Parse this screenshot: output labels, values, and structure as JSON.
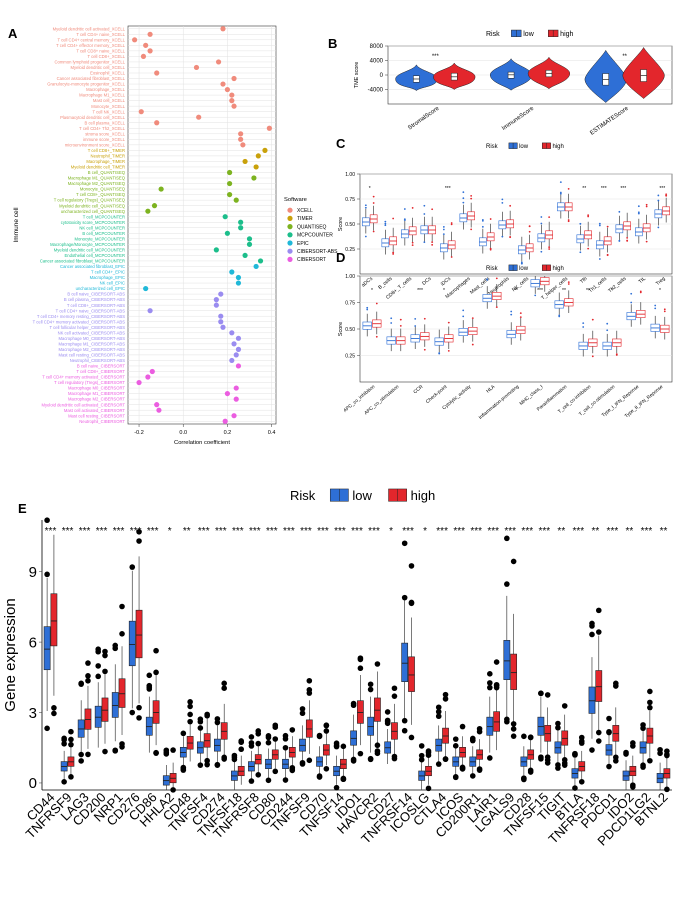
{
  "panel_labels": {
    "A": "A",
    "B": "B",
    "C": "C",
    "D": "D",
    "E": "E"
  },
  "colors": {
    "low": "#2E6FD6",
    "high": "#E3262C",
    "XCELL": "#F08B7C",
    "TIMER": "#C9A10A",
    "QUANTISEQ": "#7DB320",
    "MCPCOUNTER": "#1CBE8B",
    "EPIC": "#20B8D8",
    "CIBERSORT-ABS": "#9A8CF0",
    "CIBERSORT": "#EB5DE0"
  },
  "chart_data": [
    {
      "id": "A",
      "type": "scatter",
      "title": "",
      "xlabel": "Correlation coefficient",
      "ylabel": "Immune cell",
      "xlim": [
        -0.25,
        0.42
      ],
      "xticks": [
        -0.2,
        0.0,
        0.2,
        0.4
      ],
      "xtick_labels": [
        "-0.2",
        "0.0",
        "0.2",
        "0.4"
      ],
      "legend_title": "Software",
      "legend": [
        "XCELL",
        "TIMER",
        "QUANTISEQ",
        "MCPCOUNTER",
        "EPIC",
        "CIBERSORT-ABS",
        "CIBERSORT"
      ],
      "points": [
        {
          "label": "Myeloid dendritic cell activated_XCELL",
          "software": "XCELL",
          "value": 0.18
        },
        {
          "label": "T cell CD4+ naive_XCELL",
          "software": "XCELL",
          "value": -0.15
        },
        {
          "label": "T cell CD4+ central memory_XCELL",
          "software": "XCELL",
          "value": -0.22
        },
        {
          "label": "T cell CD4+ effector memory_XCELL",
          "software": "XCELL",
          "value": -0.17
        },
        {
          "label": "T cell CD8+ naive_XCELL",
          "software": "XCELL",
          "value": -0.15
        },
        {
          "label": "T cell CD8+_XCELL",
          "software": "XCELL",
          "value": -0.18
        },
        {
          "label": "Common lymphoid progenitor_XCELL",
          "software": "XCELL",
          "value": 0.16
        },
        {
          "label": "Myeloid dendritic cell_XCELL",
          "software": "XCELL",
          "value": 0.06
        },
        {
          "label": "Eosinophil_XCELL",
          "software": "XCELL",
          "value": -0.12
        },
        {
          "label": "Cancer associated fibroblast_XCELL",
          "software": "XCELL",
          "value": 0.23
        },
        {
          "label": "Granulocyte-monocyte progenitor_XCELL",
          "software": "XCELL",
          "value": 0.18
        },
        {
          "label": "Macrophage_XCELL",
          "software": "XCELL",
          "value": 0.2
        },
        {
          "label": "Macrophage M1_XCELL",
          "software": "XCELL",
          "value": 0.22
        },
        {
          "label": "Mast cell_XCELL",
          "software": "XCELL",
          "value": 0.22
        },
        {
          "label": "Monocyte_XCELL",
          "software": "XCELL",
          "value": 0.23
        },
        {
          "label": "T cell NK_XCELL",
          "software": "XCELL",
          "value": -0.19
        },
        {
          "label": "Plasmacytoid dendritic cell_XCELL",
          "software": "XCELL",
          "value": 0.07
        },
        {
          "label": "B cell plasma_XCELL",
          "software": "XCELL",
          "value": -0.12
        },
        {
          "label": "T cell CD4+ Th2_XCELL",
          "software": "XCELL",
          "value": 0.39
        },
        {
          "label": "stroma score_XCELL",
          "software": "XCELL",
          "value": 0.26
        },
        {
          "label": "immune score_XCELL",
          "software": "XCELL",
          "value": 0.26
        },
        {
          "label": "microenvironment score_XCELL",
          "software": "XCELL",
          "value": 0.27
        },
        {
          "label": "T cell CD8+_TIMER",
          "software": "TIMER",
          "value": 0.37
        },
        {
          "label": "Neutrophil_TIMER",
          "software": "TIMER",
          "value": 0.34
        },
        {
          "label": "Macrophage_TIMER",
          "software": "TIMER",
          "value": 0.28
        },
        {
          "label": "Myeloid dendritic cell_TIMER",
          "software": "TIMER",
          "value": 0.33
        },
        {
          "label": "B cell_QUANTISEQ",
          "software": "QUANTISEQ",
          "value": 0.21
        },
        {
          "label": "Macrophage M1_QUANTISEQ",
          "software": "QUANTISEQ",
          "value": 0.32
        },
        {
          "label": "Macrophage M2_QUANTISEQ",
          "software": "QUANTISEQ",
          "value": 0.21
        },
        {
          "label": "Monocyte_QUANTISEQ",
          "software": "QUANTISEQ",
          "value": -0.1
        },
        {
          "label": "T cell CD8+_QUANTISEQ",
          "software": "QUANTISEQ",
          "value": 0.21
        },
        {
          "label": "T cell regulatory (Tregs)_QUANTISEQ",
          "software": "QUANTISEQ",
          "value": 0.24
        },
        {
          "label": "Myeloid dendritic cell_QUANTISEQ",
          "software": "QUANTISEQ",
          "value": -0.13
        },
        {
          "label": "uncharacterized cell_QUANTISEQ",
          "software": "QUANTISEQ",
          "value": -0.16
        },
        {
          "label": "T cell_MCPCOUNTER",
          "software": "MCPCOUNTER",
          "value": 0.19
        },
        {
          "label": "cytotoxicity score_MCPCOUNTER",
          "software": "MCPCOUNTER",
          "value": 0.26
        },
        {
          "label": "NK cell_MCPCOUNTER",
          "software": "MCPCOUNTER",
          "value": 0.26
        },
        {
          "label": "B cell_MCPCOUNTER",
          "software": "MCPCOUNTER",
          "value": 0.2
        },
        {
          "label": "Monocyte_MCPCOUNTER",
          "software": "MCPCOUNTER",
          "value": 0.3
        },
        {
          "label": "Macrophage/Monocyte_MCPCOUNTER",
          "software": "MCPCOUNTER",
          "value": 0.3
        },
        {
          "label": "Myeloid dendritic cell_MCPCOUNTER",
          "software": "MCPCOUNTER",
          "value": 0.15
        },
        {
          "label": "Endothelial cell_MCPCOUNTER",
          "software": "MCPCOUNTER",
          "value": 0.28
        },
        {
          "label": "Cancer associated fibroblast_MCPCOUNTER",
          "software": "MCPCOUNTER",
          "value": 0.35
        },
        {
          "label": "Cancer associated fibroblast_EPIC",
          "software": "EPIC",
          "value": 0.33
        },
        {
          "label": "T cell CD4+_EPIC",
          "software": "EPIC",
          "value": 0.22
        },
        {
          "label": "Macrophage_EPIC",
          "software": "EPIC",
          "value": 0.25
        },
        {
          "label": "NK cell_EPIC",
          "software": "EPIC",
          "value": 0.25
        },
        {
          "label": "uncharacterized cell_EPIC",
          "software": "EPIC",
          "value": -0.17
        },
        {
          "label": "B cell naive_CIBERSORT-ABS",
          "software": "CIBERSORT-ABS",
          "value": 0.17
        },
        {
          "label": "B cell plasma_CIBERSORT-ABS",
          "software": "CIBERSORT-ABS",
          "value": 0.15
        },
        {
          "label": "T cell CD8+_CIBERSORT-ABS",
          "software": "CIBERSORT-ABS",
          "value": 0.15
        },
        {
          "label": "T cell CD4+ naive_CIBERSORT-ABS",
          "software": "CIBERSORT-ABS",
          "value": -0.15
        },
        {
          "label": "T cell CD4+ memory resting_CIBERSORT-ABS",
          "software": "CIBERSORT-ABS",
          "value": 0.17
        },
        {
          "label": "T cell CD4+ memory activated_CIBERSORT-ABS",
          "software": "CIBERSORT-ABS",
          "value": 0.17
        },
        {
          "label": "T cell follicular helper_CIBERSORT-ABS",
          "software": "CIBERSORT-ABS",
          "value": 0.18
        },
        {
          "label": "NK cell activated_CIBERSORT-ABS",
          "software": "CIBERSORT-ABS",
          "value": 0.22
        },
        {
          "label": "Macrophage M0_CIBERSORT-ABS",
          "software": "CIBERSORT-ABS",
          "value": 0.25
        },
        {
          "label": "Macrophage M1_CIBERSORT-ABS",
          "software": "CIBERSORT-ABS",
          "value": 0.23
        },
        {
          "label": "Macrophage M2_CIBERSORT-ABS",
          "software": "CIBERSORT-ABS",
          "value": 0.25
        },
        {
          "label": "Mast cell resting_CIBERSORT-ABS",
          "software": "CIBERSORT-ABS",
          "value": 0.24
        },
        {
          "label": "Neutrophil_CIBERSORT-ABS",
          "software": "CIBERSORT-ABS",
          "value": 0.22
        },
        {
          "label": "B cell naive_CIBERSORT",
          "software": "CIBERSORT",
          "value": 0.25
        },
        {
          "label": "T cell CD8+_CIBERSORT",
          "software": "CIBERSORT",
          "value": -0.14
        },
        {
          "label": "T cell CD4+ memory activated_CIBERSORT",
          "software": "CIBERSORT",
          "value": -0.16
        },
        {
          "label": "T cell regulatory (Tregs)_CIBERSORT",
          "software": "CIBERSORT",
          "value": -0.2
        },
        {
          "label": "Macrophage M0_CIBERSORT",
          "software": "CIBERSORT",
          "value": 0.24
        },
        {
          "label": "Macrophage M1_CIBERSORT",
          "software": "CIBERSORT",
          "value": 0.2
        },
        {
          "label": "Macrophage M2_CIBERSORT",
          "software": "CIBERSORT",
          "value": 0.24
        },
        {
          "label": "Myeloid dendritic cell activated_CIBERSORT",
          "software": "CIBERSORT",
          "value": -0.12
        },
        {
          "label": "Mast cell activated_CIBERSORT",
          "software": "CIBERSORT",
          "value": -0.11
        },
        {
          "label": "Mast cell resting_CIBERSORT",
          "software": "CIBERSORT",
          "value": 0.23
        },
        {
          "label": "Neutrophil_CIBERSORT",
          "software": "CIBERSORT",
          "value": 0.19
        }
      ]
    },
    {
      "id": "B",
      "type": "violin",
      "title": "",
      "legend_title": "Risk",
      "legend": [
        "low",
        "high"
      ],
      "ylabel": "TME score",
      "ylim": [
        -8000,
        8000
      ],
      "yticks": [
        -4000,
        0,
        4000,
        8000
      ],
      "categories": [
        "StromalScore",
        "ImmuneScore",
        "ESTIMATEScore"
      ],
      "significance": [
        "***",
        "",
        "**"
      ],
      "series": [
        {
          "name": "low",
          "median": [
            -1100,
            50,
            -1200
          ],
          "q1": [
            -2000,
            -900,
            -2800
          ],
          "q3": [
            -200,
            800,
            400
          ],
          "min": [
            -4300,
            -4200,
            -7600
          ],
          "max": [
            2800,
            4500,
            6800
          ]
        },
        {
          "name": "high",
          "median": [
            -500,
            450,
            -100
          ],
          "q1": [
            -1400,
            -500,
            -1800
          ],
          "q3": [
            500,
            1300,
            1500
          ],
          "min": [
            -4000,
            -3800,
            -6500
          ],
          "max": [
            3300,
            4900,
            7600
          ]
        }
      ]
    },
    {
      "id": "C",
      "type": "boxplot",
      "title": "",
      "legend_title": "Risk",
      "legend": [
        "low",
        "high"
      ],
      "ylabel": "Score",
      "ylim": [
        0.0,
        1.0
      ],
      "yticks": [
        0.25,
        0.5,
        0.75,
        1.0
      ],
      "ytick_labels": [
        "0.25",
        "0.50",
        "0.75",
        "1.00"
      ],
      "categories": [
        "aDCs",
        "B_cells",
        "CD8+_T_cells",
        "DCs",
        "iDCs",
        "Macrophages",
        "Mast_cells",
        "Neutrophils",
        "NK_cells",
        "pDCs",
        "T_helper_cells",
        "Tfh",
        "Th1_cells",
        "Th2_cells",
        "TIL",
        "Treg"
      ],
      "significance": [
        "*",
        "",
        "",
        "",
        "***",
        "",
        "",
        "",
        "",
        "",
        "",
        "**",
        "***",
        "***",
        "",
        "***"
      ],
      "series": [
        {
          "name": "low",
          "median": [
            0.52,
            0.31,
            0.4,
            0.44,
            0.26,
            0.56,
            0.32,
            0.49,
            0.24,
            0.36,
            0.67,
            0.35,
            0.29,
            0.45,
            0.42,
            0.6
          ]
        },
        {
          "name": "high",
          "median": [
            0.55,
            0.33,
            0.43,
            0.44,
            0.29,
            0.58,
            0.37,
            0.5,
            0.26,
            0.39,
            0.67,
            0.39,
            0.33,
            0.48,
            0.46,
            0.63
          ]
        }
      ]
    },
    {
      "id": "D",
      "type": "boxplot",
      "title": "",
      "legend_title": "Risk",
      "legend": [
        "low",
        "high"
      ],
      "ylabel": "Score",
      "ylim": [
        0.0,
        1.0
      ],
      "yticks": [
        0.25,
        0.5,
        0.75,
        1.0
      ],
      "ytick_labels": [
        "0.25",
        "0.50",
        "0.75",
        "1.00"
      ],
      "categories": [
        "APC_co_inhibition",
        "APC_co_stimulation",
        "CCR",
        "Check-point",
        "Cytolytic_activity",
        "HLA",
        "Inflammation-promoting",
        "MHC_class_I",
        "Parainflammation",
        "T_cell_co-inhibition",
        "T_cell_co-stimulation",
        "Type_I_IFN_Reponse",
        "Type_II_IFN_Reponse"
      ],
      "significance": [
        "*",
        "",
        "***",
        "*",
        "",
        "",
        "**",
        "***",
        "**",
        "**",
        "*",
        "",
        "*"
      ],
      "series": [
        {
          "name": "low",
          "median": [
            0.53,
            0.39,
            0.41,
            0.38,
            0.47,
            0.79,
            0.45,
            0.93,
            0.73,
            0.34,
            0.34,
            0.62,
            0.51
          ]
        },
        {
          "name": "high",
          "median": [
            0.55,
            0.39,
            0.43,
            0.41,
            0.48,
            0.81,
            0.49,
            0.95,
            0.75,
            0.37,
            0.37,
            0.64,
            0.5
          ]
        }
      ]
    },
    {
      "id": "E",
      "type": "boxplot",
      "title": "",
      "legend_title": "Risk",
      "legend": [
        "low",
        "high"
      ],
      "xlabel": "",
      "ylabel": "Gene expression",
      "ylim": [
        -0.3,
        11.2
      ],
      "yticks": [
        0,
        3,
        6,
        9
      ],
      "categories": [
        "CD44",
        "TNFRSF9",
        "LAG3",
        "CD200",
        "NRP1",
        "CD276",
        "CD86",
        "HHLA2",
        "CD48",
        "TNFSF4",
        "CD274",
        "TNFSF18",
        "TNFRSF8",
        "CD80",
        "CD244",
        "TNFSF9",
        "CD70",
        "TNFSF14",
        "IDO1",
        "HAVCR2",
        "CD27",
        "TNFRSF14",
        "ICOSLG",
        "CTLA4",
        "ICOS",
        "CD200R1",
        "LAIR1",
        "LGALS9",
        "CD28",
        "TNFSF15",
        "TIGIT",
        "BTLA",
        "TNFRSF18",
        "PDCD1",
        "IDO2",
        "PDCD1LG2",
        "BTNL2"
      ],
      "significance": [
        "***",
        "***",
        "***",
        "***",
        "***",
        "***",
        "***",
        "*",
        "**",
        "***",
        "***",
        "***",
        "***",
        "***",
        "***",
        "***",
        "***",
        "***",
        "***",
        "***",
        "*",
        "***",
        "*",
        "***",
        "***",
        "***",
        "***",
        "***",
        "***",
        "***",
        "**",
        "***",
        "**",
        "***",
        "**",
        "***",
        "**"
      ],
      "series": [
        {
          "name": "low",
          "median": [
            5.7,
            0.7,
            2.3,
            2.8,
            3.3,
            5.9,
            2.4,
            0.1,
            1.3,
            1.5,
            1.6,
            0.3,
            0.7,
            0.8,
            0.8,
            1.6,
            0.9,
            0.5,
            1.9,
            2.4,
            1.5,
            5.1,
            0.3,
            1.6,
            0.9,
            0.9,
            2.4,
            5.2,
            0.9,
            2.4,
            1.5,
            0.4,
            3.5,
            1.4,
            0.3,
            1.5,
            0.2
          ]
        },
        {
          "name": "high",
          "median": [
            6.9,
            0.9,
            2.7,
            3.1,
            3.8,
            6.3,
            3.0,
            0.2,
            1.7,
            1.8,
            2.2,
            0.5,
            1.0,
            1.2,
            1.3,
            2.3,
            1.4,
            0.8,
            3.0,
            3.1,
            2.2,
            4.6,
            0.5,
            2.0,
            1.3,
            1.2,
            2.6,
            4.7,
            1.2,
            2.1,
            1.9,
            0.7,
            4.1,
            2.1,
            0.5,
            2.0,
            0.4
          ]
        }
      ]
    }
  ]
}
